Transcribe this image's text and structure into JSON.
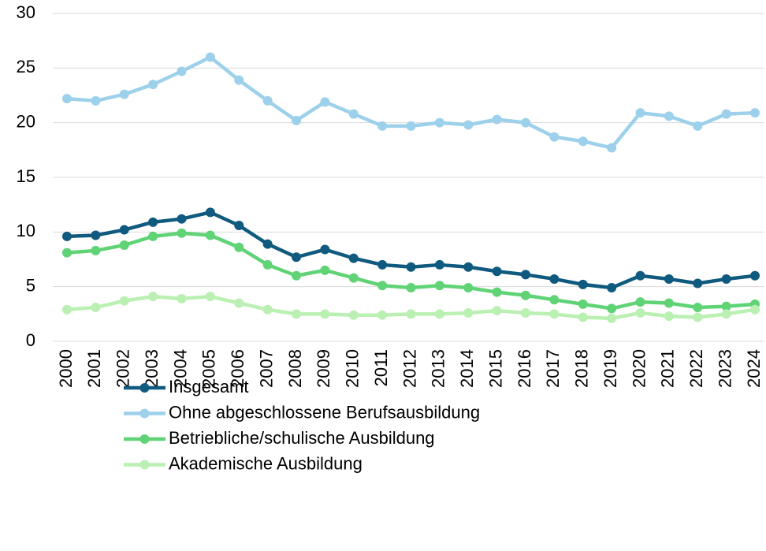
{
  "chart_data": {
    "type": "line",
    "categories": [
      "2000",
      "2001",
      "2002",
      "2003",
      "2004",
      "2005",
      "2006",
      "2007",
      "2008",
      "2009",
      "2010",
      "2011",
      "2012",
      "2013",
      "2014",
      "2015",
      "2016",
      "2017",
      "2018",
      "2019",
      "2020",
      "2021",
      "2022",
      "2023",
      "2024"
    ],
    "series": [
      {
        "name": "Insgesamt",
        "color": "#0f5a7e",
        "values": [
          9.6,
          9.7,
          10.2,
          10.9,
          11.2,
          11.8,
          10.6,
          8.9,
          7.7,
          8.4,
          7.6,
          7.0,
          6.8,
          7.0,
          6.8,
          6.4,
          6.1,
          5.7,
          5.2,
          4.9,
          6.0,
          5.7,
          5.3,
          5.7,
          6.0
        ]
      },
      {
        "name": "Ohne abgeschlossene Berufsausbildung",
        "color": "#9dd0ea",
        "values": [
          22.2,
          22.0,
          22.6,
          23.5,
          24.7,
          26.0,
          23.9,
          22.0,
          20.2,
          21.9,
          20.8,
          19.7,
          19.7,
          20.0,
          19.8,
          20.3,
          20.0,
          18.7,
          18.3,
          17.7,
          20.9,
          20.6,
          19.7,
          20.8,
          20.9
        ]
      },
      {
        "name": "Betriebliche/schulische Ausbildung",
        "color": "#5fd375",
        "values": [
          8.1,
          8.3,
          8.8,
          9.6,
          9.9,
          9.7,
          8.6,
          7.0,
          6.0,
          6.5,
          5.8,
          5.1,
          4.9,
          5.1,
          4.9,
          4.5,
          4.2,
          3.8,
          3.4,
          3.0,
          3.6,
          3.5,
          3.1,
          3.2,
          3.4
        ]
      },
      {
        "name": "Akademische Ausbildung",
        "color": "#baf0b2",
        "values": [
          2.9,
          3.1,
          3.7,
          4.1,
          3.9,
          4.1,
          3.5,
          2.9,
          2.5,
          2.5,
          2.4,
          2.4,
          2.5,
          2.5,
          2.6,
          2.8,
          2.6,
          2.5,
          2.2,
          2.1,
          2.6,
          2.3,
          2.2,
          2.5,
          2.9
        ]
      }
    ],
    "ylim": [
      0,
      30
    ],
    "yticks": [
      0,
      5,
      10,
      15,
      20,
      25,
      30
    ],
    "grid": true
  }
}
